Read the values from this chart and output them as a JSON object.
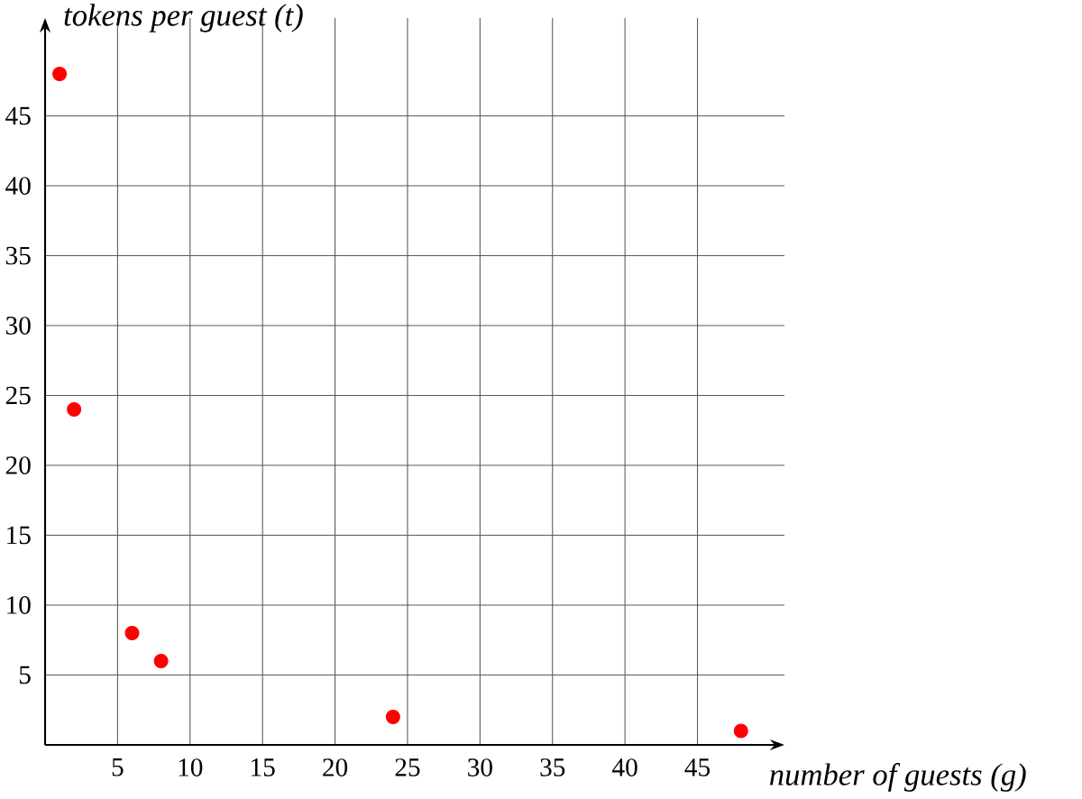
{
  "chart_data": {
    "type": "scatter",
    "xlabel": "*number of guests (g)*",
    "ylabel": "*tokens per guest (t)*",
    "x": [
      1,
      2,
      6,
      8,
      24,
      48
    ],
    "values": [
      48,
      24,
      8,
      6,
      2,
      1
    ],
    "color": "#ff0000",
    "marker": "circle",
    "xlim": [
      0,
      51
    ],
    "ylim": [
      0,
      52
    ],
    "xticks": [
      5,
      10,
      15,
      20,
      25,
      30,
      35,
      40,
      45
    ],
    "yticks": [
      5,
      10,
      15,
      20,
      25,
      30,
      35,
      40,
      45
    ],
    "grid": true
  }
}
